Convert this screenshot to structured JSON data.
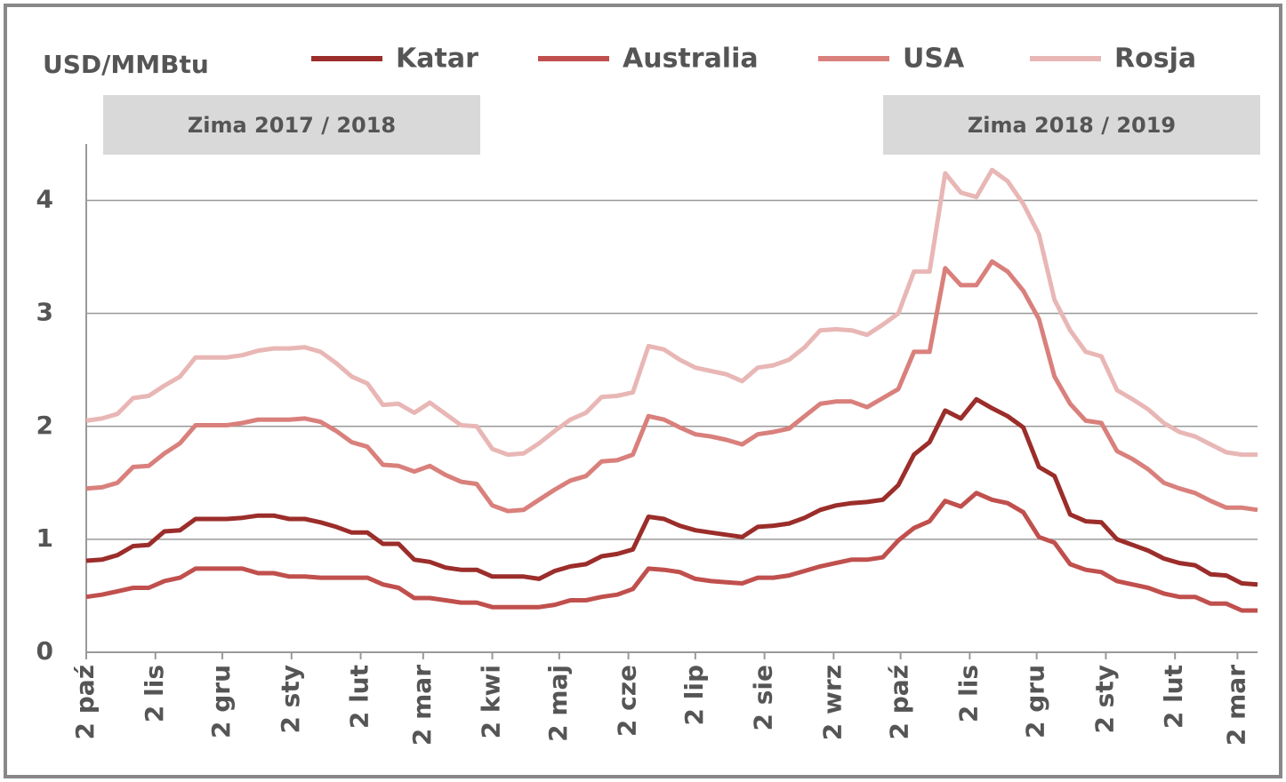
{
  "chart_data": {
    "type": "line",
    "y_label": "USD/MMBtu",
    "annotations": [
      "Zima 2017 / 2018",
      "Zima 2018 / 2019"
    ],
    "x": [
      0,
      7,
      14,
      21,
      28,
      35,
      42,
      49,
      56,
      63,
      70,
      77,
      84,
      91,
      98,
      105,
      112,
      119,
      126,
      133,
      140,
      147,
      154,
      161,
      168,
      175,
      182,
      189,
      196,
      203,
      210,
      217,
      224,
      231,
      238,
      245,
      252,
      259,
      266,
      273,
      280,
      287,
      294,
      301,
      308,
      315,
      322,
      329,
      336,
      343,
      350,
      357,
      364,
      371,
      378,
      385,
      392,
      399,
      406,
      413,
      420,
      427,
      434,
      441,
      448,
      455,
      462,
      469,
      476,
      483,
      490,
      497,
      504,
      511,
      518,
      525
    ],
    "xlim": [
      0,
      525
    ],
    "xticks": [
      {
        "value": 0,
        "label": "2 paź"
      },
      {
        "value": 31,
        "label": "2 lis"
      },
      {
        "value": 61,
        "label": "2 gru"
      },
      {
        "value": 92,
        "label": "2 sty"
      },
      {
        "value": 123,
        "label": "2 lut"
      },
      {
        "value": 151,
        "label": "2 mar"
      },
      {
        "value": 182,
        "label": "2 kwi"
      },
      {
        "value": 212,
        "label": "2 maj"
      },
      {
        "value": 243,
        "label": "2 cze"
      },
      {
        "value": 273,
        "label": "2 lip"
      },
      {
        "value": 304,
        "label": "2 sie"
      },
      {
        "value": 335,
        "label": "2 wrz"
      },
      {
        "value": 365,
        "label": "2 paź"
      },
      {
        "value": 396,
        "label": "2 lis"
      },
      {
        "value": 426,
        "label": "2 gru"
      },
      {
        "value": 457,
        "label": "2 sty"
      },
      {
        "value": 488,
        "label": "2 lut"
      },
      {
        "value": 516,
        "label": "2 mar"
      }
    ],
    "ylim": [
      0,
      4.5
    ],
    "yticks": [
      0,
      1,
      2,
      3,
      4
    ],
    "grid": true,
    "series": [
      {
        "name": "Katar",
        "color": "#9b2d2a",
        "values": [
          0.81,
          0.82,
          0.86,
          0.94,
          0.95,
          1.07,
          1.08,
          1.18,
          1.18,
          1.18,
          1.19,
          1.21,
          1.21,
          1.18,
          1.18,
          1.15,
          1.11,
          1.06,
          1.06,
          0.96,
          0.96,
          0.82,
          0.8,
          0.75,
          0.73,
          0.73,
          0.67,
          0.67,
          0.67,
          0.65,
          0.72,
          0.76,
          0.78,
          0.85,
          0.87,
          0.91,
          1.2,
          1.18,
          1.12,
          1.08,
          1.06,
          1.04,
          1.02,
          1.11,
          1.12,
          1.14,
          1.19,
          1.26,
          1.3,
          1.32,
          1.33,
          1.35,
          1.48,
          1.75,
          1.86,
          2.14,
          2.07,
          2.24,
          2.16,
          2.09,
          1.99,
          1.64,
          1.56,
          1.22,
          1.16,
          1.15,
          1.0,
          0.95,
          0.9,
          0.83,
          0.79,
          0.77,
          0.69,
          0.68,
          0.61,
          0.6
        ]
      },
      {
        "name": "Australia",
        "color": "#c0504d",
        "values": [
          0.49,
          0.51,
          0.54,
          0.57,
          0.57,
          0.63,
          0.66,
          0.74,
          0.74,
          0.74,
          0.74,
          0.7,
          0.7,
          0.67,
          0.67,
          0.66,
          0.66,
          0.66,
          0.66,
          0.6,
          0.57,
          0.48,
          0.48,
          0.46,
          0.44,
          0.44,
          0.4,
          0.4,
          0.4,
          0.4,
          0.42,
          0.46,
          0.46,
          0.49,
          0.51,
          0.56,
          0.74,
          0.73,
          0.71,
          0.65,
          0.63,
          0.62,
          0.61,
          0.66,
          0.66,
          0.68,
          0.72,
          0.76,
          0.79,
          0.82,
          0.82,
          0.84,
          0.99,
          1.1,
          1.16,
          1.34,
          1.29,
          1.41,
          1.35,
          1.32,
          1.24,
          1.02,
          0.97,
          0.78,
          0.73,
          0.71,
          0.63,
          0.6,
          0.57,
          0.52,
          0.49,
          0.49,
          0.43,
          0.43,
          0.37,
          0.37
        ]
      },
      {
        "name": "USA",
        "color": "#d9807c",
        "values": [
          1.45,
          1.46,
          1.5,
          1.64,
          1.65,
          1.76,
          1.85,
          2.01,
          2.01,
          2.01,
          2.03,
          2.06,
          2.06,
          2.06,
          2.07,
          2.04,
          1.96,
          1.86,
          1.82,
          1.66,
          1.65,
          1.6,
          1.65,
          1.57,
          1.51,
          1.49,
          1.3,
          1.25,
          1.26,
          1.35,
          1.44,
          1.52,
          1.56,
          1.69,
          1.7,
          1.75,
          2.09,
          2.06,
          1.99,
          1.93,
          1.91,
          1.88,
          1.84,
          1.93,
          1.95,
          1.98,
          2.09,
          2.2,
          2.22,
          2.22,
          2.17,
          2.25,
          2.33,
          2.66,
          2.66,
          3.4,
          3.25,
          3.25,
          3.46,
          3.37,
          3.2,
          2.95,
          2.44,
          2.2,
          2.05,
          2.03,
          1.78,
          1.71,
          1.62,
          1.5,
          1.45,
          1.41,
          1.34,
          1.28,
          1.28,
          1.26
        ]
      },
      {
        "name": "Rosja",
        "color": "#e8b7b5",
        "values": [
          2.05,
          2.07,
          2.11,
          2.25,
          2.27,
          2.36,
          2.44,
          2.61,
          2.61,
          2.61,
          2.63,
          2.67,
          2.69,
          2.69,
          2.7,
          2.66,
          2.56,
          2.44,
          2.38,
          2.19,
          2.2,
          2.12,
          2.21,
          2.11,
          2.01,
          2.0,
          1.8,
          1.75,
          1.76,
          1.85,
          1.96,
          2.06,
          2.12,
          2.26,
          2.27,
          2.3,
          2.71,
          2.68,
          2.59,
          2.52,
          2.49,
          2.46,
          2.4,
          2.52,
          2.54,
          2.59,
          2.7,
          2.85,
          2.86,
          2.85,
          2.81,
          2.9,
          3.0,
          3.37,
          3.37,
          4.24,
          4.07,
          4.03,
          4.27,
          4.17,
          3.97,
          3.7,
          3.12,
          2.85,
          2.66,
          2.62,
          2.32,
          2.24,
          2.15,
          2.03,
          1.95,
          1.91,
          1.84,
          1.77,
          1.75,
          1.75
        ]
      }
    ]
  }
}
